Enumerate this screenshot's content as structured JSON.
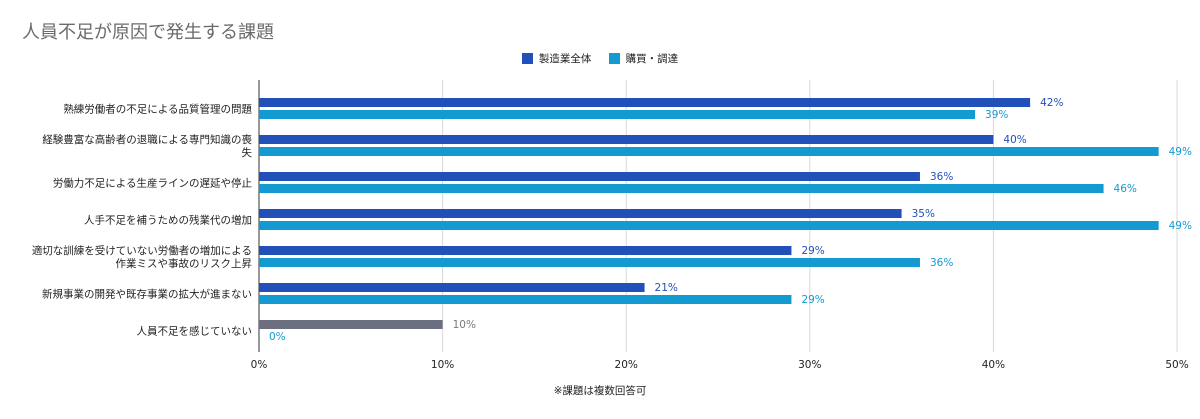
{
  "chart_data": {
    "type": "bar",
    "orientation": "horizontal",
    "title": "人員不足が原因で発生する課題",
    "categories": [
      [
        "熟練労働者の不足による品質管理の問題"
      ],
      [
        "経験豊富な高齢者の退職による専門知識の喪",
        "失"
      ],
      [
        "労働力不足による生産ラインの遅延や停止"
      ],
      [
        "人手不足を補うための残業代の増加"
      ],
      [
        "適切な訓練を受けていない労働者の増加による",
        "作業ミスや事故のリスク上昇"
      ],
      [
        "新規事業の開発や既存事業の拡大が進まない"
      ],
      [
        "人員不足を感じていない"
      ]
    ],
    "series": [
      {
        "name": "製造業全体",
        "values": [
          42,
          40,
          36,
          35,
          29,
          21,
          10
        ],
        "labels": [
          "42%",
          "40%",
          "36%",
          "35%",
          "29%",
          "21%",
          "10%"
        ]
      },
      {
        "name": "購買・調達",
        "values": [
          39,
          49,
          46,
          49,
          36,
          29,
          0
        ],
        "labels": [
          "39%",
          "49%",
          "46%",
          "49%",
          "36%",
          "29%",
          "0%"
        ]
      }
    ],
    "xlim": [
      0,
      50
    ],
    "xticks": [
      "0%",
      "10%",
      "20%",
      "30%",
      "40%",
      "50%"
    ],
    "grid": true,
    "legend_position": "top",
    "colors": {
      "series1": "#2150b9",
      "series2": "#139ad1",
      "highlight_bar": "#6b6f80",
      "highlight_label": "#7a7a7a",
      "grid": "#d9d9d9",
      "axis": "#333333"
    },
    "footnote": "※課題は複数回答可"
  }
}
